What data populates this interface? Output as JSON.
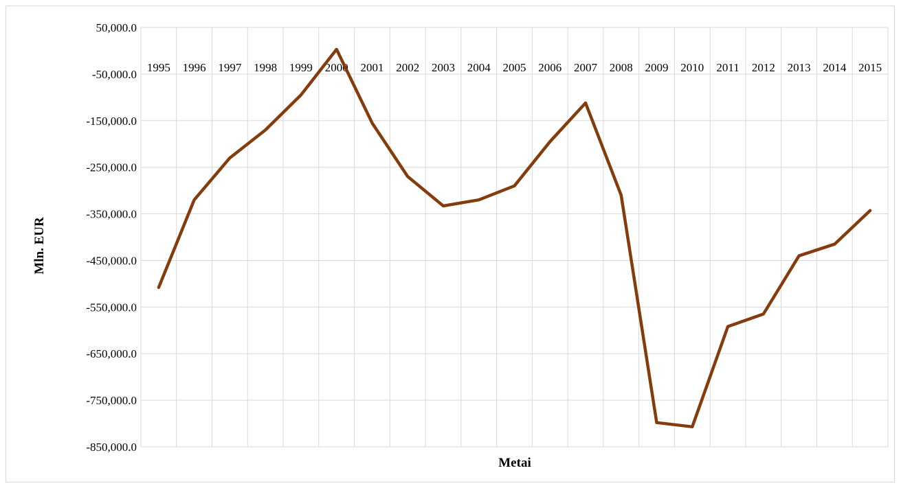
{
  "chart_data": {
    "type": "line",
    "xlabel": "Metai",
    "ylabel": "Mln. EUR",
    "categories": [
      "1995",
      "1996",
      "1997",
      "1998",
      "1999",
      "2000",
      "2001",
      "2002",
      "2003",
      "2004",
      "2005",
      "2006",
      "2007",
      "2008",
      "2009",
      "2010",
      "2011",
      "2012",
      "2013",
      "2014",
      "2015"
    ],
    "series": [
      {
        "color": "#843c0c",
        "values": [
          -508000,
          -320000,
          -230000,
          -170000,
          -95000,
          3000,
          -155000,
          -270000,
          -333000,
          -320000,
          -290000,
          -195000,
          -112000,
          -310000,
          -798000,
          -807000,
          -592000,
          -565000,
          -440000,
          -415000,
          -343000
        ]
      }
    ],
    "ylim": [
      -850000,
      50000
    ],
    "yticks": [
      50000,
      -50000,
      -150000,
      -250000,
      -350000,
      -450000,
      -550000,
      -650000,
      -750000,
      -850000
    ],
    "ytick_labels": [
      "50,000.0",
      "-50,000.0",
      "-150,000.0",
      "-250,000.0",
      "-350,000.0",
      "-450,000.0",
      "-550,000.0",
      "-650,000.0",
      "-750,000.0",
      "-850,000.0"
    ],
    "grid": true,
    "legend": "none"
  }
}
